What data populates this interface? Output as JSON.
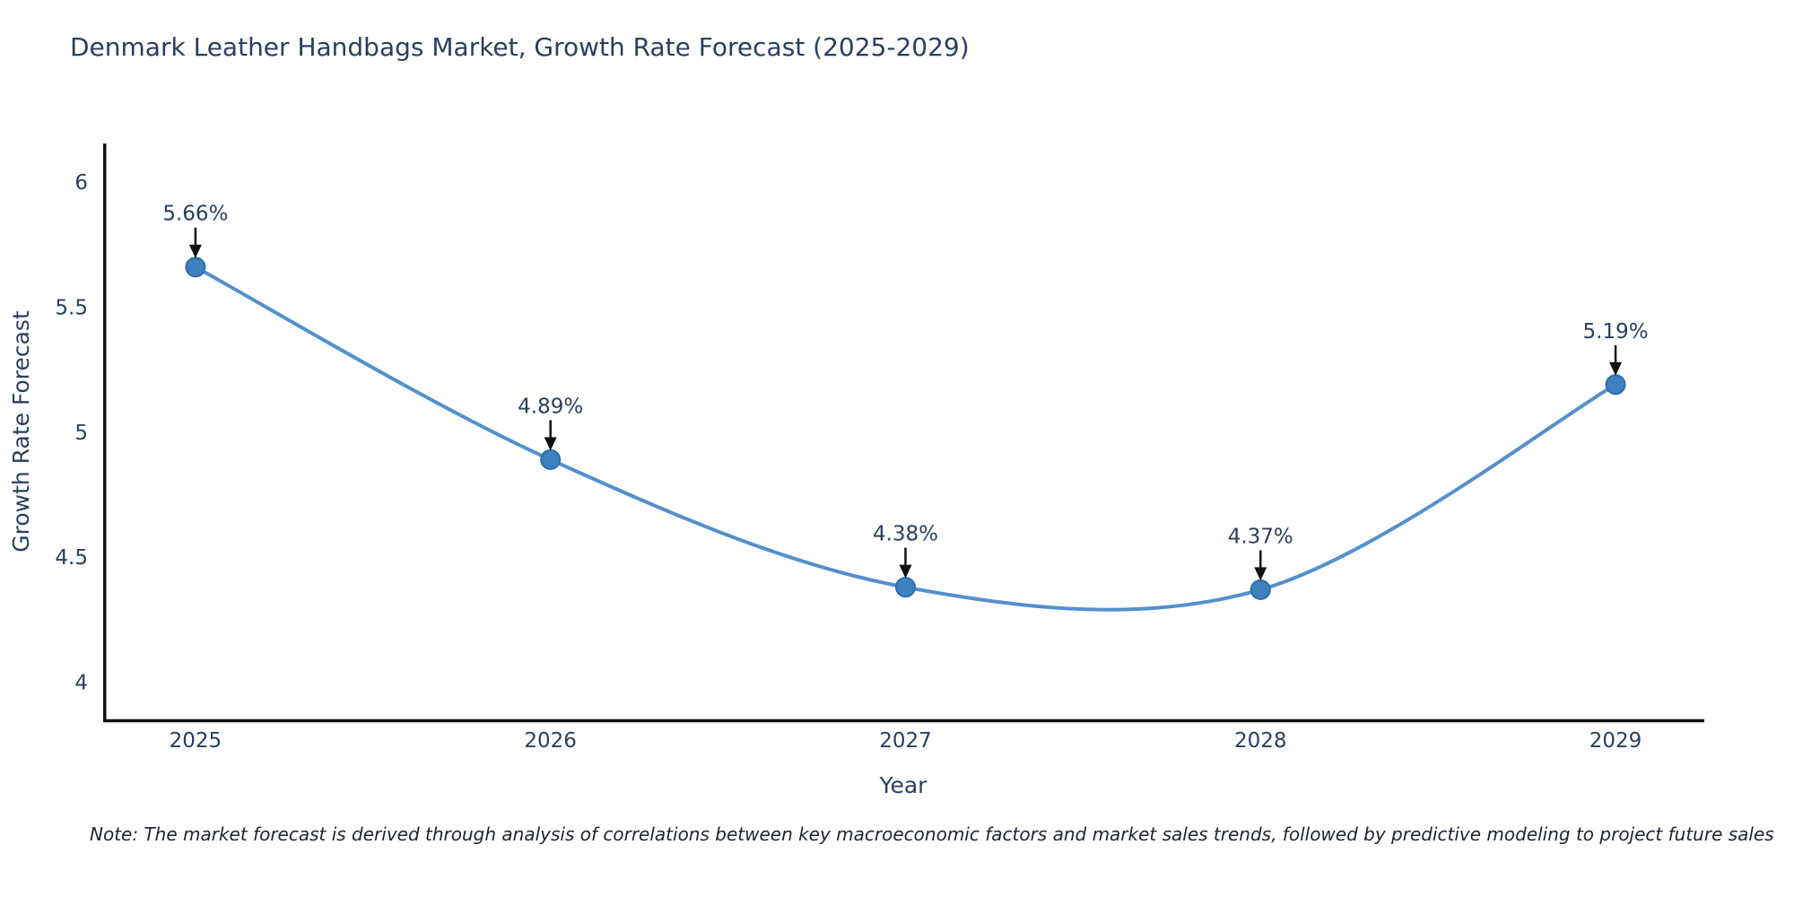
{
  "title": "Denmark Leather Handbags Market, Growth Rate Forecast (2025-2029)",
  "note": "Note: The market forecast is derived through analysis of correlations between key macroeconomic factors and market sales trends, followed by predictive modeling to project future sales",
  "chart_data": {
    "type": "line",
    "line_shape": "spline",
    "title": "Denmark Leather Handbags Market, Growth Rate Forecast (2025-2029)",
    "xlabel": "Year",
    "ylabel": "Growth Rate Forecast",
    "x": [
      2025,
      2026,
      2027,
      2028,
      2029
    ],
    "values": [
      5.66,
      4.89,
      4.38,
      4.37,
      5.19
    ],
    "point_labels": [
      "5.66%",
      "4.89%",
      "4.38%",
      "4.37%",
      "5.19%"
    ],
    "xtick_labels": [
      "2025",
      "2026",
      "2027",
      "2028",
      "2029"
    ],
    "ytick_values": [
      4,
      4.5,
      5,
      5.5,
      6
    ],
    "ytick_labels": [
      "4",
      "4.5",
      "5",
      "5.5",
      "6"
    ],
    "xlim": [
      2024.74,
      2029.25
    ],
    "ylim": [
      3.846,
      6.154
    ],
    "grid": false,
    "legend": "none",
    "colors": {
      "line": "#5390cc",
      "marker_fill": "#3e81c0",
      "marker_edge": "#2e6da4",
      "axis_line": "#111111",
      "arrow": "#111111",
      "text": "#2a3f5f",
      "background": "#ffffff"
    }
  }
}
